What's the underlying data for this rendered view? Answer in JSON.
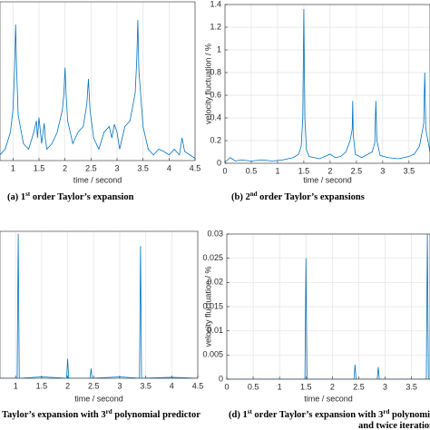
{
  "chart_data": [
    {
      "type": "line",
      "caption": [
        [
          {
            "text": "(a)  1"
          },
          {
            "text": "st",
            "sup": true
          },
          {
            "text": " order Taylor’s expansion"
          }
        ]
      ],
      "x_label": "time / second",
      "x": [
        0.75,
        0.85,
        0.95,
        1.0,
        1.03,
        1.05,
        1.07,
        1.1,
        1.2,
        1.3,
        1.4,
        1.45,
        1.47,
        1.5,
        1.55,
        1.6,
        1.62,
        1.65,
        1.75,
        1.85,
        1.95,
        1.98,
        2.0,
        2.02,
        2.05,
        2.15,
        2.25,
        2.35,
        2.42,
        2.45,
        2.48,
        2.55,
        2.65,
        2.75,
        2.85,
        2.9,
        2.95,
        3.0,
        3.05,
        3.15,
        3.25,
        3.35,
        3.38,
        3.4,
        3.42,
        3.5,
        3.6,
        3.7,
        3.8,
        3.9,
        4.0,
        4.1,
        4.2,
        4.25,
        4.3,
        4.4,
        4.5
      ],
      "series": [
        {
          "color": "#0072bd",
          "values": [
            0.05,
            0.1,
            0.25,
            0.45,
            0.8,
            1.2,
            0.8,
            0.4,
            0.15,
            0.1,
            0.25,
            0.35,
            0.2,
            0.38,
            0.15,
            0.33,
            0.2,
            0.1,
            0.15,
            0.25,
            0.45,
            0.6,
            0.82,
            0.6,
            0.35,
            0.15,
            0.25,
            0.3,
            0.5,
            0.72,
            0.45,
            0.2,
            0.1,
            0.25,
            0.3,
            0.2,
            0.32,
            0.25,
            0.1,
            0.3,
            0.35,
            0.6,
            0.9,
            1.24,
            0.8,
            0.3,
            0.1,
            0.05,
            0.1,
            0.08,
            0.05,
            0.1,
            0.05,
            0.2,
            0.08,
            0.05,
            0.02
          ]
        }
      ],
      "xlim": [
        0.75,
        4.5
      ],
      "ylim": [
        0,
        1.4
      ],
      "xticks": [
        1,
        1.5,
        2,
        2.5,
        3,
        3.5,
        4,
        4.5
      ],
      "grid": true
    },
    {
      "type": "line",
      "caption": [
        [
          {
            "text": "(b)  2"
          },
          {
            "text": "nd",
            "sup": true
          },
          {
            "text": " order Taylor’s expansions"
          }
        ]
      ],
      "x_label": "time / second",
      "y_label": "velocity fluctuation / %",
      "x": [
        0,
        0.1,
        0.2,
        0.3,
        0.5,
        0.7,
        0.9,
        1.1,
        1.3,
        1.4,
        1.45,
        1.48,
        1.5,
        1.52,
        1.55,
        1.6,
        1.8,
        2.0,
        2.1,
        2.2,
        2.3,
        2.38,
        2.42,
        2.43,
        2.44,
        2.48,
        2.6,
        2.8,
        2.85,
        2.87,
        2.89,
        2.95,
        3.1,
        3.3,
        3.5,
        3.6,
        3.7,
        3.78,
        3.8,
        3.82,
        3.9
      ],
      "series": [
        {
          "color": "#0072bd",
          "values": [
            0.01,
            0.05,
            0.02,
            0.03,
            0.02,
            0.03,
            0.02,
            0.03,
            0.05,
            0.08,
            0.15,
            0.4,
            1.36,
            0.4,
            0.12,
            0.06,
            0.04,
            0.08,
            0.05,
            0.06,
            0.1,
            0.2,
            0.3,
            0.55,
            0.25,
            0.08,
            0.05,
            0.1,
            0.18,
            0.55,
            0.2,
            0.07,
            0.05,
            0.04,
            0.06,
            0.08,
            0.15,
            0.35,
            0.8,
            0.3,
            0.1
          ]
        }
      ],
      "xlim": [
        0,
        3.9
      ],
      "ylim": [
        0,
        1.4
      ],
      "xticks": [
        0,
        0.5,
        1,
        1.5,
        2,
        2.5,
        3,
        3.5
      ],
      "yticks": [
        0,
        0.2,
        0.4,
        0.6,
        0.8,
        1,
        1.2,
        1.4
      ],
      "grid": true
    },
    {
      "type": "line",
      "caption": [
        [
          {
            "text": "Taylor’s expansion with 3"
          },
          {
            "text": "rd",
            "sup": true
          },
          {
            "text": " polynomial predictor"
          }
        ]
      ],
      "x_label": "time / second",
      "x": [
        0.7,
        1.0,
        1.03,
        1.05,
        1.07,
        1.1,
        1.5,
        1.98,
        2.0,
        2.02,
        2.43,
        2.45,
        2.47,
        3.0,
        3.38,
        3.4,
        3.42,
        4.0,
        4.5
      ],
      "series": [
        {
          "color": "#0072bd",
          "values": [
            0,
            0,
            0,
            0.0295,
            0,
            0,
            0.0003,
            0,
            0.004,
            0,
            0,
            0.002,
            0,
            0.0003,
            0,
            0.027,
            0,
            0.0002,
            0
          ]
        }
      ],
      "xlim": [
        0.7,
        4.5
      ],
      "ylim": [
        0,
        0.03
      ],
      "xticks": [
        1,
        1.5,
        2,
        2.5,
        3,
        3.5,
        4,
        4.5
      ],
      "grid": true
    },
    {
      "type": "line",
      "caption": [
        [
          {
            "text": "(d)  1"
          },
          {
            "text": "st",
            "sup": true
          },
          {
            "text": " order Taylor’s expansion with 3"
          },
          {
            "text": "rd",
            "sup": true
          },
          {
            "text": " polynomial predictor"
          }
        ],
        [
          {
            "text": "and twice iteration"
          }
        ]
      ],
      "x_label": "time / second",
      "y_label": "velocity fluctuation / %",
      "x": [
        0,
        0.5,
        1.48,
        1.5,
        1.52,
        2.0,
        2.41,
        2.43,
        2.45,
        2.85,
        2.87,
        2.89,
        3.3,
        3.78,
        3.8,
        3.82,
        3.85
      ],
      "series": [
        {
          "color": "#0072bd",
          "values": [
            0,
            0,
            0,
            0.025,
            0,
            0,
            0,
            0.003,
            0,
            0,
            0.0025,
            0,
            0,
            0,
            0.03,
            0,
            0
          ]
        }
      ],
      "xlim": [
        0,
        3.85
      ],
      "ylim": [
        0,
        0.03
      ],
      "xticks": [
        0,
        0.5,
        1,
        1.5,
        2,
        2.5,
        3,
        3.5
      ],
      "yticks": [
        0,
        0.005,
        0.01,
        0.015,
        0.02,
        0.025,
        0.03
      ],
      "grid": true
    }
  ]
}
